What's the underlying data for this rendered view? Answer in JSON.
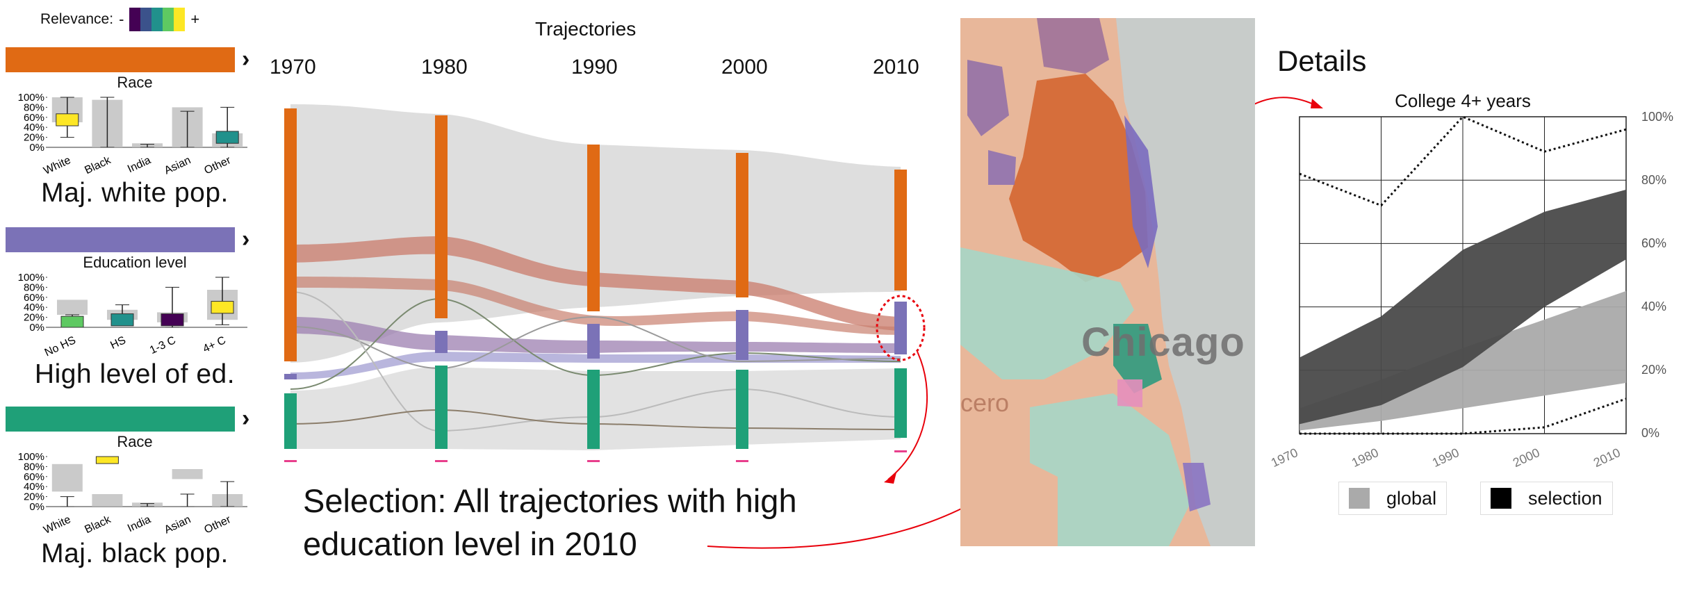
{
  "relevance": {
    "label": "Relevance:",
    "minus": "-",
    "plus": "+",
    "colors": [
      "#440154",
      "#3b528b",
      "#21918c",
      "#5ec962",
      "#fde725"
    ]
  },
  "ticks": [
    "100%",
    "80%",
    "60%",
    "40%",
    "20%",
    "0%"
  ],
  "clusters": [
    {
      "color": "#e06a14",
      "chart_title": "Race",
      "name": "Maj. white pop.",
      "categories": [
        "White",
        "Black",
        "India",
        "Asian",
        "Other"
      ],
      "highlight": "#fde725"
    },
    {
      "color": "#7b72b7",
      "chart_title": "Education level",
      "name": "High level of ed.",
      "categories": [
        "No HS",
        "HS",
        "1-3 C",
        "4+ C"
      ],
      "highlight": "#fde725"
    },
    {
      "color": "#1fa078",
      "chart_title": "Race",
      "name": "Maj. black pop.",
      "categories": [
        "White",
        "Black",
        "India",
        "Asian",
        "Other"
      ],
      "highlight": "#fde725"
    }
  ],
  "trajectories": {
    "title": "Trajectories",
    "years": [
      "1970",
      "1980",
      "1990",
      "2000",
      "2010"
    ]
  },
  "selection_text": "Selection: All trajectories with high education level in 2010",
  "map": {
    "city_label": "Chicago",
    "place_label": "cero"
  },
  "details": {
    "title": "Details",
    "chart_title": "College 4+ years",
    "legend": [
      "global",
      "selection"
    ]
  },
  "chart_data": {
    "type": "area",
    "title": "College 4+ years",
    "x": [
      1970,
      1980,
      1990,
      2000,
      2010
    ],
    "x_tick_labels": [
      "1970",
      "1980",
      "1990",
      "2000",
      "2010"
    ],
    "y_tick_labels": [
      "100%",
      "80%",
      "60%",
      "40%",
      "20%",
      "0%"
    ],
    "ylim": [
      0,
      100
    ],
    "series": [
      {
        "name": "global",
        "lower": [
          1,
          4,
          8,
          12,
          16
        ],
        "upper": [
          8,
          17,
          27,
          36,
          45
        ],
        "color": "#aaaaaa"
      },
      {
        "name": "selection",
        "lower": [
          3,
          9,
          21,
          40,
          55
        ],
        "upper": [
          24,
          37,
          58,
          70,
          77
        ],
        "color": "#4a4a4a"
      }
    ],
    "extremes": {
      "max": [
        82,
        72,
        100,
        89,
        96
      ],
      "min": [
        0,
        0,
        0,
        2,
        11
      ]
    },
    "grid": true,
    "legend_position": "bottom"
  }
}
